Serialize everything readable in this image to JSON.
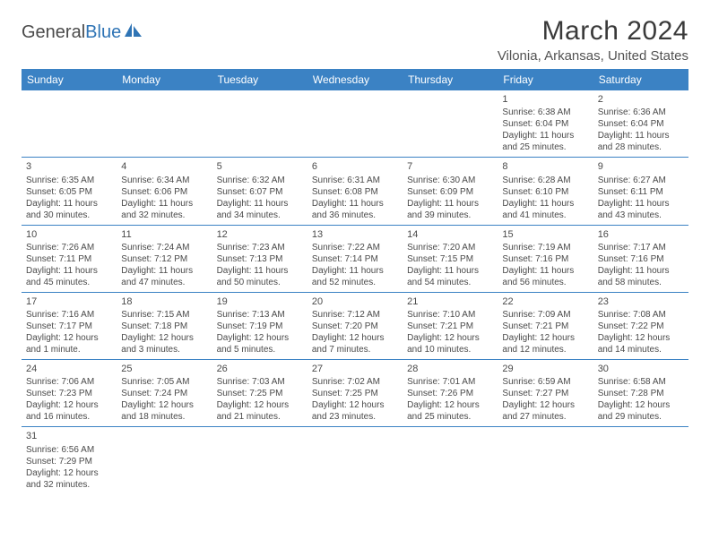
{
  "brand": {
    "part1": "General",
    "part2": "Blue"
  },
  "title": "March 2024",
  "location": "Vilonia, Arkansas, United States",
  "colors": {
    "header_bg": "#3b82c4",
    "header_text": "#ffffff",
    "border": "#3b82c4",
    "body_text": "#4a4a4a",
    "brand_gray": "#4a4a4a",
    "brand_blue": "#2f74b5"
  },
  "day_headers": [
    "Sunday",
    "Monday",
    "Tuesday",
    "Wednesday",
    "Thursday",
    "Friday",
    "Saturday"
  ],
  "weeks": [
    [
      null,
      null,
      null,
      null,
      null,
      {
        "n": "1",
        "sr": "6:38 AM",
        "ss": "6:04 PM",
        "dl": "11 hours and 25 minutes."
      },
      {
        "n": "2",
        "sr": "6:36 AM",
        "ss": "6:04 PM",
        "dl": "11 hours and 28 minutes."
      }
    ],
    [
      {
        "n": "3",
        "sr": "6:35 AM",
        "ss": "6:05 PM",
        "dl": "11 hours and 30 minutes."
      },
      {
        "n": "4",
        "sr": "6:34 AM",
        "ss": "6:06 PM",
        "dl": "11 hours and 32 minutes."
      },
      {
        "n": "5",
        "sr": "6:32 AM",
        "ss": "6:07 PM",
        "dl": "11 hours and 34 minutes."
      },
      {
        "n": "6",
        "sr": "6:31 AM",
        "ss": "6:08 PM",
        "dl": "11 hours and 36 minutes."
      },
      {
        "n": "7",
        "sr": "6:30 AM",
        "ss": "6:09 PM",
        "dl": "11 hours and 39 minutes."
      },
      {
        "n": "8",
        "sr": "6:28 AM",
        "ss": "6:10 PM",
        "dl": "11 hours and 41 minutes."
      },
      {
        "n": "9",
        "sr": "6:27 AM",
        "ss": "6:11 PM",
        "dl": "11 hours and 43 minutes."
      }
    ],
    [
      {
        "n": "10",
        "sr": "7:26 AM",
        "ss": "7:11 PM",
        "dl": "11 hours and 45 minutes."
      },
      {
        "n": "11",
        "sr": "7:24 AM",
        "ss": "7:12 PM",
        "dl": "11 hours and 47 minutes."
      },
      {
        "n": "12",
        "sr": "7:23 AM",
        "ss": "7:13 PM",
        "dl": "11 hours and 50 minutes."
      },
      {
        "n": "13",
        "sr": "7:22 AM",
        "ss": "7:14 PM",
        "dl": "11 hours and 52 minutes."
      },
      {
        "n": "14",
        "sr": "7:20 AM",
        "ss": "7:15 PM",
        "dl": "11 hours and 54 minutes."
      },
      {
        "n": "15",
        "sr": "7:19 AM",
        "ss": "7:16 PM",
        "dl": "11 hours and 56 minutes."
      },
      {
        "n": "16",
        "sr": "7:17 AM",
        "ss": "7:16 PM",
        "dl": "11 hours and 58 minutes."
      }
    ],
    [
      {
        "n": "17",
        "sr": "7:16 AM",
        "ss": "7:17 PM",
        "dl": "12 hours and 1 minute."
      },
      {
        "n": "18",
        "sr": "7:15 AM",
        "ss": "7:18 PM",
        "dl": "12 hours and 3 minutes."
      },
      {
        "n": "19",
        "sr": "7:13 AM",
        "ss": "7:19 PM",
        "dl": "12 hours and 5 minutes."
      },
      {
        "n": "20",
        "sr": "7:12 AM",
        "ss": "7:20 PM",
        "dl": "12 hours and 7 minutes."
      },
      {
        "n": "21",
        "sr": "7:10 AM",
        "ss": "7:21 PM",
        "dl": "12 hours and 10 minutes."
      },
      {
        "n": "22",
        "sr": "7:09 AM",
        "ss": "7:21 PM",
        "dl": "12 hours and 12 minutes."
      },
      {
        "n": "23",
        "sr": "7:08 AM",
        "ss": "7:22 PM",
        "dl": "12 hours and 14 minutes."
      }
    ],
    [
      {
        "n": "24",
        "sr": "7:06 AM",
        "ss": "7:23 PM",
        "dl": "12 hours and 16 minutes."
      },
      {
        "n": "25",
        "sr": "7:05 AM",
        "ss": "7:24 PM",
        "dl": "12 hours and 18 minutes."
      },
      {
        "n": "26",
        "sr": "7:03 AM",
        "ss": "7:25 PM",
        "dl": "12 hours and 21 minutes."
      },
      {
        "n": "27",
        "sr": "7:02 AM",
        "ss": "7:25 PM",
        "dl": "12 hours and 23 minutes."
      },
      {
        "n": "28",
        "sr": "7:01 AM",
        "ss": "7:26 PM",
        "dl": "12 hours and 25 minutes."
      },
      {
        "n": "29",
        "sr": "6:59 AM",
        "ss": "7:27 PM",
        "dl": "12 hours and 27 minutes."
      },
      {
        "n": "30",
        "sr": "6:58 AM",
        "ss": "7:28 PM",
        "dl": "12 hours and 29 minutes."
      }
    ],
    [
      {
        "n": "31",
        "sr": "6:56 AM",
        "ss": "7:29 PM",
        "dl": "12 hours and 32 minutes."
      },
      null,
      null,
      null,
      null,
      null,
      null
    ]
  ],
  "labels": {
    "sunrise": "Sunrise: ",
    "sunset": "Sunset: ",
    "daylight": "Daylight: "
  }
}
